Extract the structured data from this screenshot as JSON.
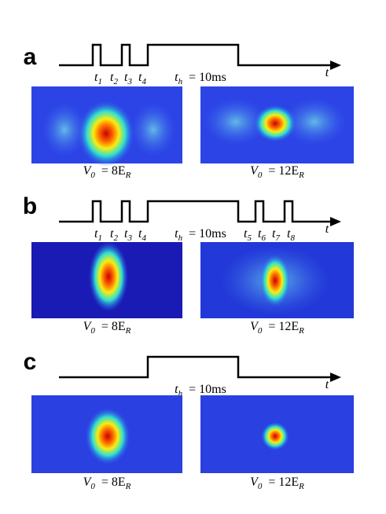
{
  "panels": [
    {
      "label": "a",
      "times": [
        {
          "base": "t",
          "sub": "1"
        },
        {
          "base": "t",
          "sub": "2"
        },
        {
          "base": "t",
          "sub": "3"
        },
        {
          "base": "t",
          "sub": "4"
        }
      ],
      "hold": {
        "base": "t",
        "sub": "h",
        "rest": "= 10ms"
      },
      "axis": "t",
      "captions": [
        {
          "base": "V",
          "sub": "0",
          "mid": "= 8E",
          "sub2": "R"
        },
        {
          "base": "V",
          "sub": "0",
          "mid": "= 12E",
          "sub2": "R"
        }
      ]
    },
    {
      "label": "b",
      "times": [
        {
          "base": "t",
          "sub": "1"
        },
        {
          "base": "t",
          "sub": "2"
        },
        {
          "base": "t",
          "sub": "3"
        },
        {
          "base": "t",
          "sub": "4"
        },
        {
          "base": "t",
          "sub": "5"
        },
        {
          "base": "t",
          "sub": "6"
        },
        {
          "base": "t",
          "sub": "7"
        },
        {
          "base": "t",
          "sub": "8"
        }
      ],
      "hold": {
        "base": "t",
        "sub": "h",
        "rest": "= 10ms"
      },
      "axis": "t",
      "captions": [
        {
          "base": "V",
          "sub": "0",
          "mid": "= 8E",
          "sub2": "R"
        },
        {
          "base": "V",
          "sub": "0",
          "mid": "= 12E",
          "sub2": "R"
        }
      ]
    },
    {
      "label": "c",
      "times": [],
      "hold": {
        "base": "t",
        "sub": "h",
        "rest": "= 10ms"
      },
      "axis": "t",
      "captions": [
        {
          "base": "V",
          "sub": "0",
          "mid": "= 8E",
          "sub2": "R"
        },
        {
          "base": "V",
          "sub": "0",
          "mid": "= 12E",
          "sub2": "R"
        }
      ]
    }
  ]
}
